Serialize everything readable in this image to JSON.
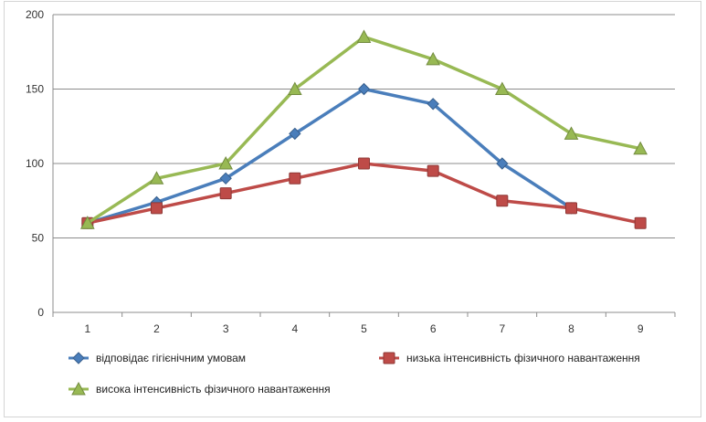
{
  "chart_data": {
    "type": "line",
    "categories": [
      "1",
      "2",
      "3",
      "4",
      "5",
      "6",
      "7",
      "8",
      "9"
    ],
    "ylim": [
      0,
      200
    ],
    "yticks": [
      "0",
      "50",
      "100",
      "150",
      "200"
    ],
    "grid": true,
    "legend_position": "bottom",
    "series": [
      {
        "name": "відповідає гігієнічним умовам",
        "marker": "diamond",
        "color": "#4a7ebb",
        "values": [
          60,
          74,
          90,
          120,
          150,
          140,
          100,
          70,
          null
        ]
      },
      {
        "name": "низька інтенсивність фізичного навантаження",
        "marker": "square",
        "color": "#be4b48",
        "values": [
          60,
          70,
          80,
          90,
          100,
          95,
          75,
          70,
          60
        ]
      },
      {
        "name": "висока інтенсивність фізичного навантаження",
        "marker": "triangle",
        "color": "#98b954",
        "values": [
          60,
          90,
          100,
          150,
          185,
          170,
          150,
          120,
          110
        ]
      }
    ]
  }
}
